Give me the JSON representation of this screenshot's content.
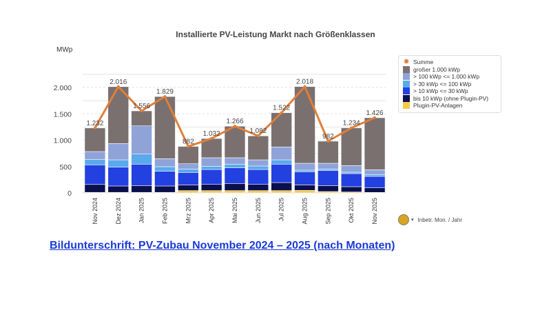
{
  "chart_data": {
    "type": "bar",
    "stacked": true,
    "title": "Installierte PV-Leistung Markt nach Größenklassen",
    "ylabel": "MWp",
    "xlabel": "Inbetr. Mon. / Jahr",
    "ylim": [
      0,
      2250
    ],
    "yticks": [
      0,
      500,
      1000,
      1500,
      2000
    ],
    "ytick_labels": [
      "0",
      "500",
      "1.000",
      "1.500",
      "2.000"
    ],
    "grid": true,
    "legend_position": "right",
    "categories": [
      "Nov 2024",
      "Dez 2024",
      "Jan 2025",
      "Feb 2025",
      "Mrz 2025",
      "Apr 2025",
      "Mai 2025",
      "Jun 2025",
      "Jul 2025",
      "Aug 2025",
      "Sep 2025",
      "Okt 2025",
      "Nov 2025"
    ],
    "series": [
      {
        "name": "Plugin-PV-Anlagen",
        "color": "#f5c94a",
        "values": [
          10,
          10,
          10,
          10,
          44,
          44,
          44,
          44,
          44,
          48,
          26,
          17,
          9
        ]
      },
      {
        "name": "bis 10 kWp (ohne Plugin-PV)",
        "color": "#0a0f4d",
        "values": [
          150,
          121,
          129,
          121,
          108,
          117,
          135,
          117,
          152,
          104,
          113,
          101,
          87
        ]
      },
      {
        "name": "> 10 kWp <= 30 kWp",
        "color": "#2340e0",
        "values": [
          372,
          357,
          406,
          279,
          236,
          283,
          296,
          283,
          349,
          249,
          284,
          248,
          218
        ]
      },
      {
        "name": "> 30 kWp <= 100 kWp",
        "color": "#5aa9ec",
        "values": [
          100,
          139,
          191,
          87,
          65,
          61,
          70,
          66,
          82,
          30,
          30,
          26,
          30
        ]
      },
      {
        "name": "> 100 kWp <= 1.000 kWp",
        "color": "#8fa3d9",
        "values": [
          152,
          310,
          536,
          152,
          100,
          162,
          122,
          117,
          244,
          131,
          109,
          126,
          96
        ]
      },
      {
        "name": "großer 1.000 kWp",
        "color": "#7a7070",
        "values": [
          448,
          1079,
          284,
          1180,
          329,
          365,
          599,
          455,
          651,
          1456,
          420,
          716,
          986
        ]
      }
    ],
    "line": {
      "name": "Summe",
      "color": "#e07f3a",
      "values": [
        1232,
        2016,
        1556,
        1829,
        882,
        1032,
        1266,
        1082,
        1522,
        2018,
        982,
        1234,
        1426
      ],
      "labels": [
        "1.232",
        "2.016",
        "1.556",
        "1.829",
        "882",
        "1.032",
        "1.266",
        "1.082",
        "1.522",
        "2.018",
        "982",
        "1.234",
        "1.426"
      ]
    }
  },
  "caption": "Bildunterschrift: PV-Zubau November 2024 – 2025 (nach Monaten)"
}
